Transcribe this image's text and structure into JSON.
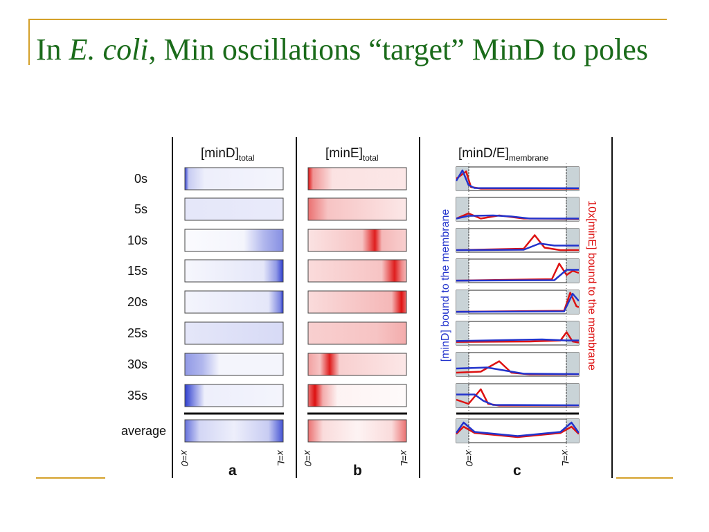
{
  "slide": {
    "title_prefix": "In ",
    "title_italic_1": "E.",
    "title_space": " ",
    "title_italic_2": "coli",
    "title_suffix": ", Min oscillations “target” MinD to poles"
  },
  "figure": {
    "panel_a_header": "[minD]",
    "panel_a_sub": "total",
    "panel_b_header": "[minE]",
    "panel_b_sub": "total",
    "panel_c_header": "[minD/E]",
    "panel_c_sub": "membrane",
    "time_labels": [
      "0s",
      "5s",
      "10s",
      "15s",
      "20s",
      "25s",
      "30s",
      "35s"
    ],
    "average_label": "average",
    "x0_label": "x=0",
    "xL_label": "x=L",
    "panel_letters": [
      "a",
      "b",
      "c"
    ],
    "left_axis_label": "[minD] bound to the membrane",
    "right_axis_label": "10x[minE] bound to the membrane",
    "colors": {
      "minD": "#2233cc",
      "minE": "#dd1111",
      "title": "#1a6b1a",
      "accent_rule": "#d4a12a",
      "pole_fill": "#c9d3d7"
    }
  }
}
